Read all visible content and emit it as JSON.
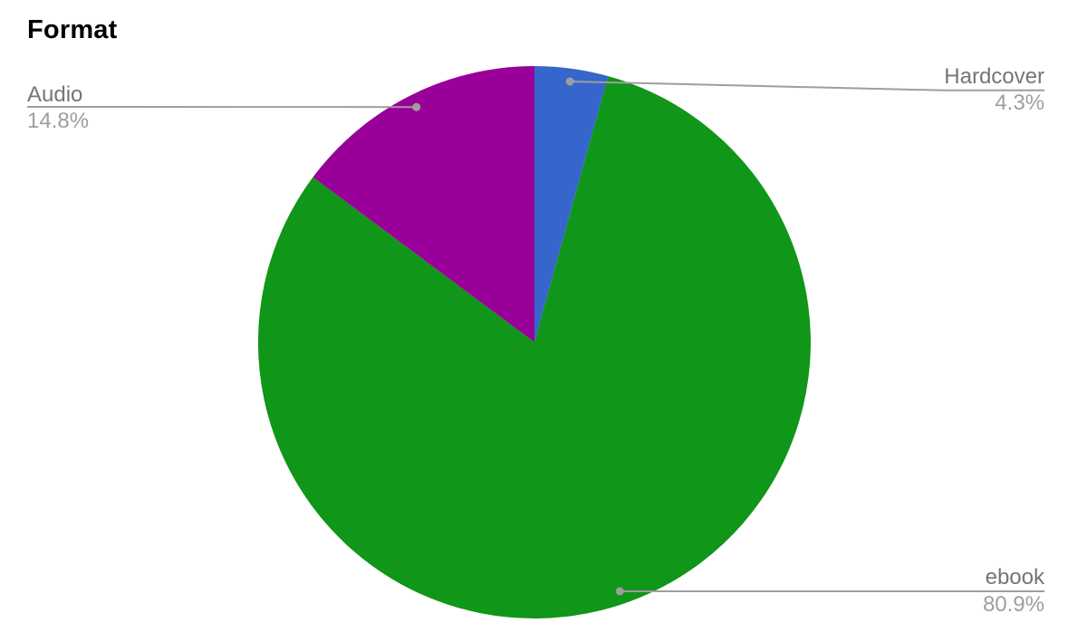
{
  "chart_data": {
    "type": "pie",
    "title": "Format",
    "start_angle_deg": 0,
    "direction": "clockwise",
    "legend_position": "outside-callouts",
    "slices": [
      {
        "label": "Hardcover",
        "value_pct": 4.3,
        "pct_label": "4.3%",
        "color": "#3666cc"
      },
      {
        "label": "ebook",
        "value_pct": 80.9,
        "pct_label": "80.9%",
        "color": "#109618"
      },
      {
        "label": "Audio",
        "value_pct": 14.8,
        "pct_label": "14.8%",
        "color": "#990099"
      }
    ]
  },
  "colors": {
    "background": "#ffffff",
    "title_text": "#000000",
    "label_text": "#757575",
    "pct_text": "#9e9e9e",
    "leader_line": "#9e9e9e"
  }
}
